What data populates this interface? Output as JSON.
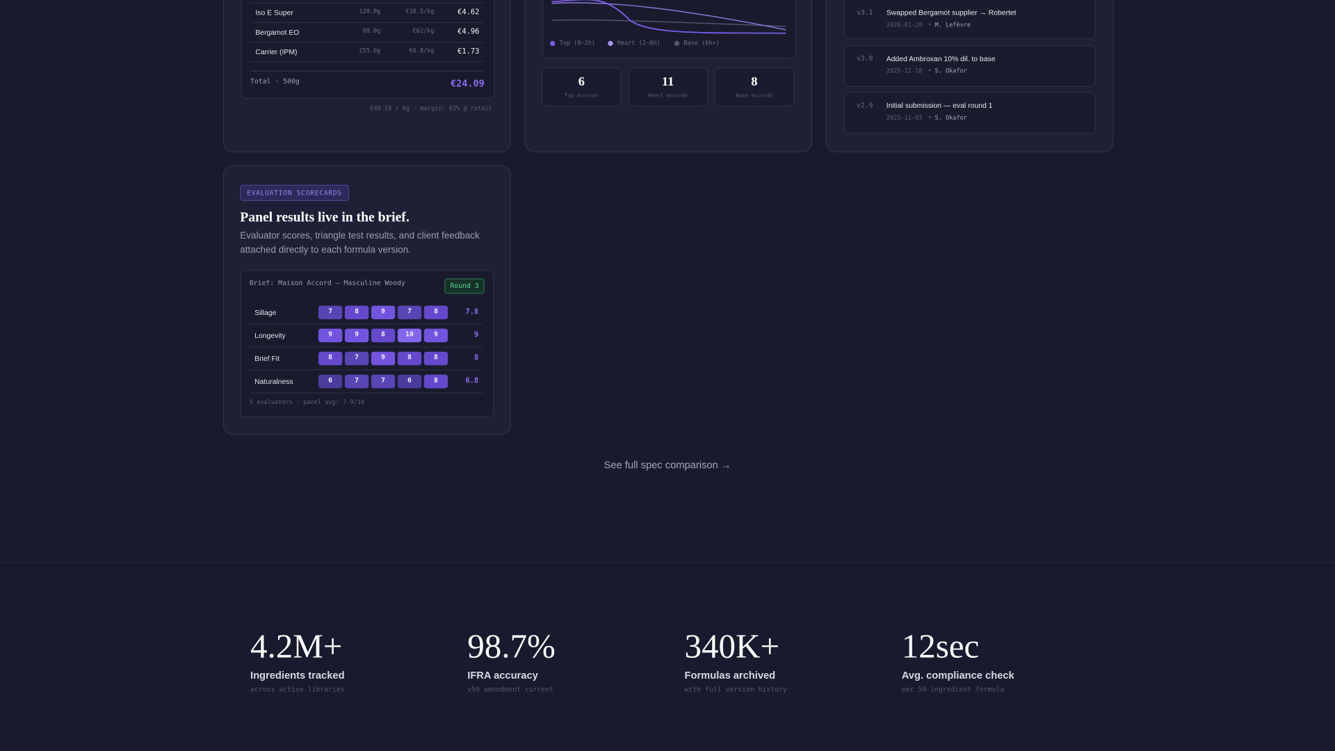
{
  "cost_table": {
    "rows": [
      [
        "Iso E Super",
        "120.0g",
        "€38.5/kg",
        "€4.62"
      ],
      [
        "Bergamot EO",
        "80.0g",
        "€62/kg",
        "€4.96"
      ],
      [
        "Carrier (IPM)",
        "255.0g",
        "€6.8/kg",
        "€1.73"
      ]
    ],
    "total_label": "Total · 500g",
    "total": "€24.09",
    "footer": "€48.18 / kg · margin: 62% @ retail"
  },
  "aroma": {
    "legend": [
      "Top (0–2h)",
      "Heart (2–6h)",
      "Base (6h+)"
    ],
    "stats": [
      {
        "value": "6",
        "label": "Top accords"
      },
      {
        "value": "11",
        "label": "Heart accords"
      },
      {
        "value": "8",
        "label": "Base accords"
      }
    ]
  },
  "versions": [
    {
      "version": "v3.1",
      "text": "Swapped Bergamot supplier → Robertet",
      "date": "2026-01-28",
      "author": "M. Lefèvre"
    },
    {
      "version": "v3.0",
      "text": "Added Ambroxan 10% dil. to base",
      "date": "2025-12-18",
      "author": "S. Okafor"
    },
    {
      "version": "v2.9",
      "text": "Initial submission — eval round 1",
      "date": "2025-11-03",
      "author": "S. Okafor"
    }
  ],
  "scorecards": {
    "badge": "EVALUATION SCORECARDS",
    "title": "Panel results live in the brief.",
    "description": "Evaluator scores, triangle test results, and client feedback attached directly to each formula version.",
    "brief": "Brief: Maison Accord — Masculine Woody",
    "round": "Round 3",
    "rows": [
      {
        "label": "Sillage",
        "scores": [
          7,
          8,
          9,
          7,
          8
        ],
        "average": 7.8
      },
      {
        "label": "Longevity",
        "scores": [
          9,
          9,
          8,
          10,
          9
        ],
        "average": 9
      },
      {
        "label": "Brief Fit",
        "scores": [
          8,
          7,
          9,
          8,
          8
        ],
        "average": 8
      },
      {
        "label": "Naturalness",
        "scores": [
          6,
          7,
          7,
          6,
          8
        ],
        "average": 6.8
      }
    ],
    "footer": "5 evaluators · panel avg: 7.9/10"
  },
  "link": "See full spec comparison →",
  "stats": [
    {
      "value": "4.2M+",
      "label": "Ingredients tracked",
      "note": "across active libraries"
    },
    {
      "value": "98.7%",
      "label": "IFRA accuracy",
      "note": "v50 amendment current"
    },
    {
      "value": "340K+",
      "label": "Formulas archived",
      "note": "with full version history"
    },
    {
      "value": "12sec",
      "label": "Avg. compliance check",
      "note": "per 50-ingredient formula"
    }
  ]
}
